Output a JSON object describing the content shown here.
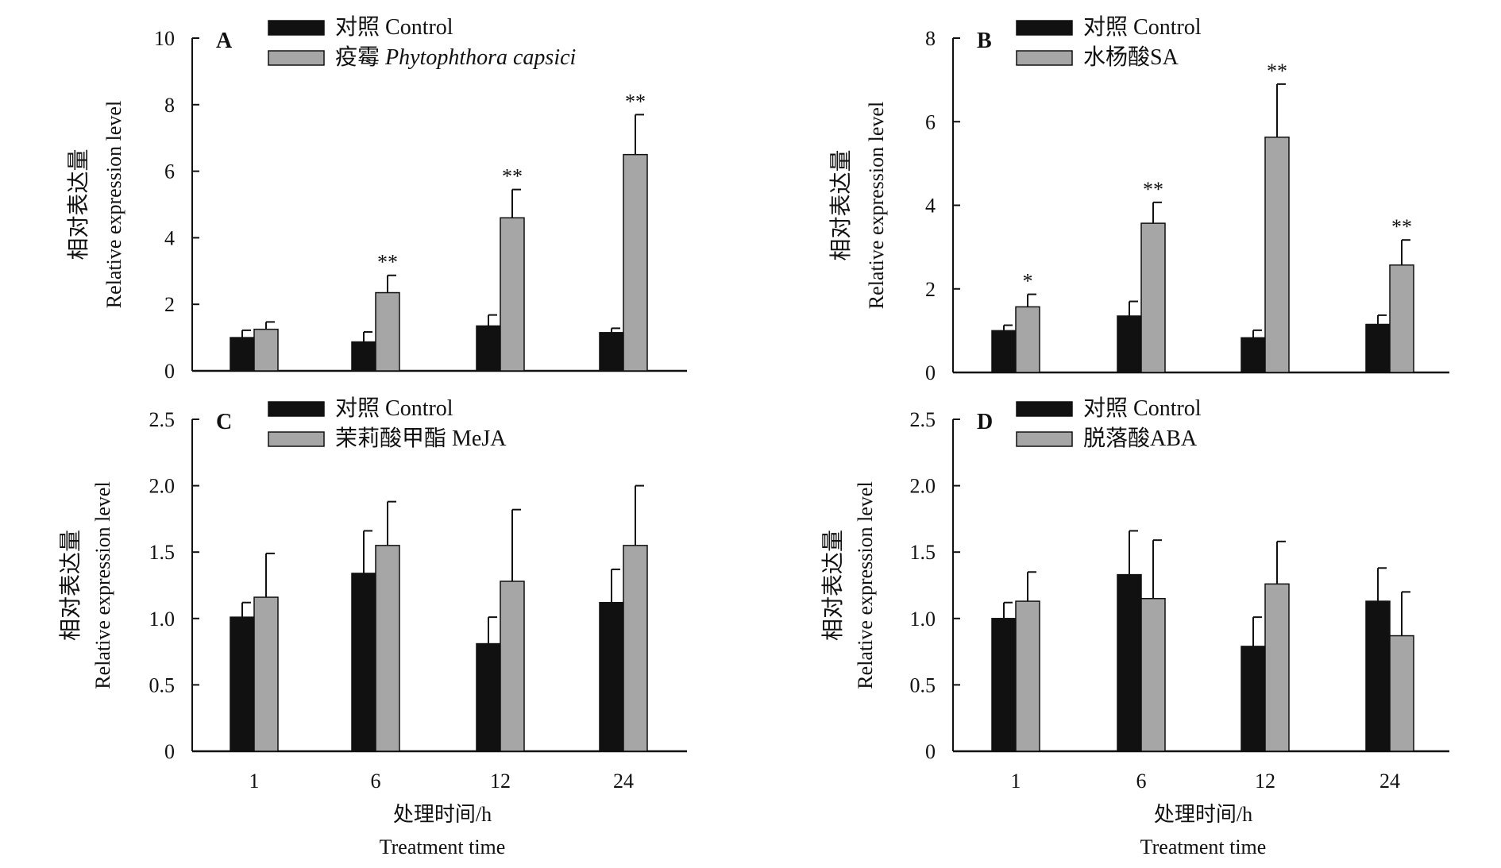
{
  "colors": {
    "control": "#111111",
    "treatment": "#a6a6a6",
    "axis": "#111111"
  },
  "shared": {
    "xlabel_cn": "处理时间/h",
    "xlabel_en": "Treatment time",
    "ylabel_cn": "相对表达量",
    "ylabel_en": "Relative expression level"
  },
  "chart_data": [
    {
      "panel": "A",
      "type": "bar",
      "categories": [
        "1",
        "6",
        "12",
        "24"
      ],
      "ylim": [
        0,
        10
      ],
      "yticks": [
        "0",
        "2",
        "4",
        "6",
        "8",
        "10"
      ],
      "ytick_values": [
        0,
        2,
        4,
        6,
        8,
        10
      ],
      "legend": [
        {
          "cn": "对照",
          "en": "Control",
          "italic": false
        },
        {
          "cn": "疫霉",
          "en": "Phytophthora capsici",
          "italic": true
        }
      ],
      "series": [
        {
          "values": [
            1.0,
            0.87,
            1.35,
            1.15
          ],
          "errors": [
            0.22,
            0.3,
            0.33,
            0.13
          ]
        },
        {
          "values": [
            1.25,
            2.35,
            4.6,
            6.5
          ],
          "errors": [
            0.22,
            0.52,
            0.85,
            1.2
          ]
        }
      ],
      "significance": [
        "",
        "**",
        "**",
        "**"
      ]
    },
    {
      "panel": "B",
      "type": "bar",
      "categories": [
        "1",
        "6",
        "12",
        "24"
      ],
      "ylim": [
        0,
        8
      ],
      "yticks": [
        "0",
        "2",
        "4",
        "6",
        "8"
      ],
      "ytick_values": [
        0,
        2,
        4,
        6,
        8
      ],
      "legend": [
        {
          "cn": "对照",
          "en": "Control",
          "italic": false
        },
        {
          "cn": "水杨酸",
          "en": "SA",
          "italic": false
        }
      ],
      "series": [
        {
          "values": [
            1.0,
            1.35,
            0.83,
            1.15
          ],
          "errors": [
            0.13,
            0.35,
            0.18,
            0.22
          ]
        },
        {
          "values": [
            1.57,
            3.57,
            5.63,
            2.57
          ],
          "errors": [
            0.3,
            0.5,
            1.27,
            0.6
          ]
        }
      ],
      "significance": [
        "*",
        "**",
        "**",
        "**"
      ]
    },
    {
      "panel": "C",
      "type": "bar",
      "categories": [
        "1",
        "6",
        "12",
        "24"
      ],
      "ylim": [
        0,
        2.5
      ],
      "yticks": [
        "0",
        "0.5",
        "1.0",
        "1.5",
        "2.0",
        "2.5"
      ],
      "ytick_values": [
        0,
        0.5,
        1.0,
        1.5,
        2.0,
        2.5
      ],
      "legend": [
        {
          "cn": "对照",
          "en": "Control",
          "italic": false
        },
        {
          "cn": "茉莉酸甲酯",
          "en": "MeJA",
          "italic": false
        }
      ],
      "series": [
        {
          "values": [
            1.01,
            1.34,
            0.81,
            1.12
          ],
          "errors": [
            0.11,
            0.32,
            0.2,
            0.25
          ]
        },
        {
          "values": [
            1.16,
            1.55,
            1.28,
            1.55
          ],
          "errors": [
            0.33,
            0.33,
            0.54,
            0.45
          ]
        }
      ],
      "significance": [
        "",
        "",
        "",
        ""
      ]
    },
    {
      "panel": "D",
      "type": "bar",
      "categories": [
        "1",
        "6",
        "12",
        "24"
      ],
      "ylim": [
        0,
        2.5
      ],
      "yticks": [
        "0",
        "0.5",
        "1.0",
        "1.5",
        "2.0",
        "2.5"
      ],
      "ytick_values": [
        0,
        0.5,
        1.0,
        1.5,
        2.0,
        2.5
      ],
      "legend": [
        {
          "cn": "对照",
          "en": "Control",
          "italic": false
        },
        {
          "cn": "脱落酸",
          "en": "ABA",
          "italic": false
        }
      ],
      "series": [
        {
          "values": [
            1.0,
            1.33,
            0.79,
            1.13
          ],
          "errors": [
            0.12,
            0.33,
            0.22,
            0.25
          ]
        },
        {
          "values": [
            1.13,
            1.15,
            1.26,
            0.87
          ],
          "errors": [
            0.22,
            0.44,
            0.32,
            0.33
          ]
        }
      ],
      "significance": [
        "",
        "",
        "",
        ""
      ]
    }
  ]
}
